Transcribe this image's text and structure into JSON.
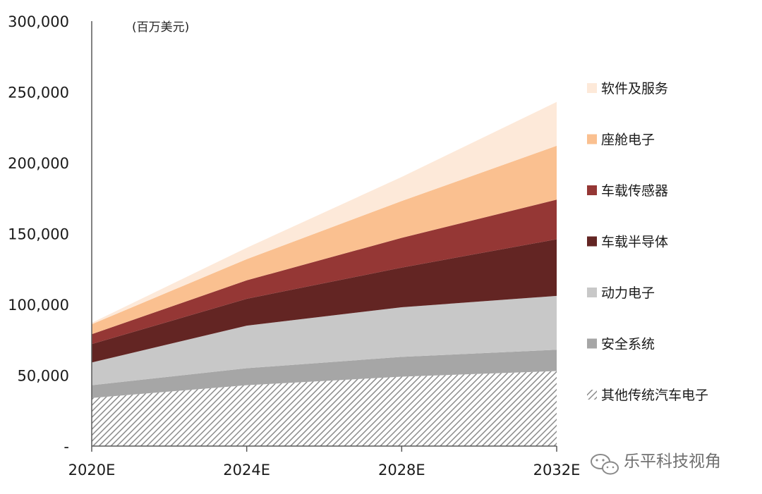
{
  "chart_data": {
    "type": "area",
    "stacked": true,
    "title": "",
    "unit_label": "(百万美元)",
    "x": [
      "2020E",
      "2024E",
      "2028E",
      "2032E"
    ],
    "ylim": [
      0,
      300000
    ],
    "yticks": [
      0,
      50000,
      100000,
      150000,
      200000,
      250000,
      300000
    ],
    "ytick_labels": [
      "-",
      "50,000",
      "100,000",
      "150,000",
      "200,000",
      "250,000",
      "300,000"
    ],
    "legend_position": "right",
    "series": [
      {
        "name": "其他传统汽车电子",
        "values": [
          34000,
          43000,
          49000,
          53000
        ],
        "color": "#9e9e9e",
        "pattern": "diagonal-hatch"
      },
      {
        "name": "安全系统",
        "values": [
          9000,
          12000,
          14000,
          15000
        ],
        "color": "#a6a6a6"
      },
      {
        "name": "动力电子",
        "values": [
          16000,
          30000,
          35000,
          38000
        ],
        "color": "#c8c8c8"
      },
      {
        "name": "车载半导体",
        "values": [
          13000,
          19000,
          28000,
          40000
        ],
        "color": "#632523"
      },
      {
        "name": "车载传感器",
        "values": [
          7000,
          13000,
          21000,
          28000
        ],
        "color": "#953735"
      },
      {
        "name": "座舱电子",
        "values": [
          7000,
          15000,
          26000,
          38000
        ],
        "color": "#fac090"
      },
      {
        "name": "软件及服务",
        "values": [
          1000,
          8000,
          17000,
          31000
        ],
        "color": "#fde9d9"
      }
    ]
  },
  "watermark": {
    "text": "乐平科技视角",
    "icon": "wechat-icon"
  }
}
